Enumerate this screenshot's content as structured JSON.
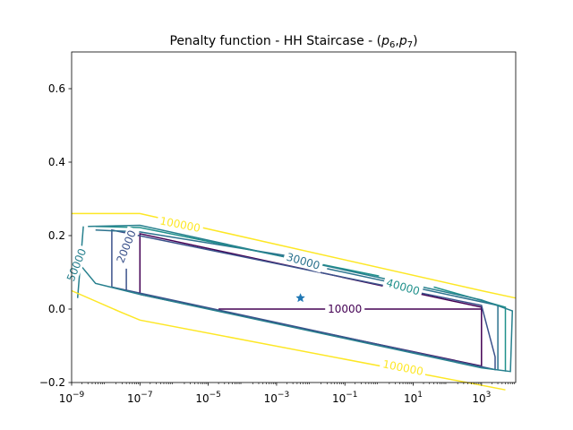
{
  "chart_data": {
    "type": "contour",
    "title_main": "Penalty function - HH Staircase - (",
    "title_p6": "p",
    "title_p6_sub": "6",
    "title_sep": ",",
    "title_p7": "p",
    "title_p7_sub": "7",
    "title_end": ")",
    "xscale": "log",
    "xlim": [
      1e-09,
      10000
    ],
    "ylim": [
      -0.2,
      0.7
    ],
    "x_ticks": [
      {
        "value": 1e-09,
        "base": "10",
        "exp": "−9"
      },
      {
        "value": 1e-07,
        "base": "10",
        "exp": "−7"
      },
      {
        "value": 1e-05,
        "base": "10",
        "exp": "−5"
      },
      {
        "value": 0.001,
        "base": "10",
        "exp": "−3"
      },
      {
        "value": 0.1,
        "base": "10",
        "exp": "−1"
      },
      {
        "value": 10,
        "base": "10",
        "exp": "1"
      },
      {
        "value": 1000,
        "base": "10",
        "exp": "3"
      }
    ],
    "y_ticks": [
      {
        "value": -0.2,
        "label": "−0.2"
      },
      {
        "value": 0.0,
        "label": "0.0"
      },
      {
        "value": 0.2,
        "label": "0.2"
      },
      {
        "value": 0.4,
        "label": "0.4"
      },
      {
        "value": 0.6,
        "label": "0.6"
      }
    ],
    "marker": {
      "x": 0.005,
      "y": 0.03,
      "symbol": "star",
      "color": "#1f77b4"
    },
    "levels": [
      {
        "level": 10000,
        "label": "10000",
        "color": "#440154",
        "paths": [
          [
            [
              1e-07,
              0.04
            ],
            [
              1e-07,
              0.205
            ],
            [
              1000,
              0.005
            ],
            [
              1000,
              -0.155
            ],
            [
              1e-07,
              0.04
            ]
          ],
          [
            [
              2e-05,
              0.0
            ],
            [
              1000,
              0.0
            ]
          ]
        ],
        "labels": [
          {
            "x": 0.1,
            "y": 0.0,
            "rot": 0
          }
        ]
      },
      {
        "level": 20000,
        "label": "20000",
        "color": "#3b528b",
        "paths": [
          [
            [
              4e-08,
              0.05
            ],
            [
              4e-08,
              0.11
            ]
          ],
          [
            [
              1.5e-08,
              0.06
            ],
            [
              1.5e-08,
              0.215
            ],
            [
              1000,
              0.01
            ],
            [
              2500,
              -0.13
            ],
            [
              2500,
              -0.165
            ],
            [
              1.5e-08,
              0.06
            ]
          ]
        ],
        "labels": [
          {
            "x": 4e-08,
            "y": 0.17,
            "rot": -68
          }
        ]
      },
      {
        "level": 30000,
        "label": "30000",
        "color": "#2c728e",
        "paths": [
          [
            [
              5e-09,
              0.215
            ],
            [
              1e-07,
              0.21
            ],
            [
              0.002,
              0.145
            ]
          ],
          [
            [
              0.03,
              0.11
            ],
            [
              3000,
              0.01
            ],
            [
              3000,
              -0.165
            ]
          ]
        ],
        "labels": [
          {
            "x": 0.006,
            "y": 0.13,
            "rot": 16
          }
        ]
      },
      {
        "level": 40000,
        "label": "40000",
        "color": "#21918c",
        "paths": [
          [
            [
              5e-09,
              0.225
            ],
            [
              1e-07,
              0.222
            ],
            [
              1,
              0.09
            ]
          ],
          [
            [
              40,
              0.06
            ],
            [
              5000,
              0.005
            ],
            [
              5000,
              -0.17
            ]
          ]
        ],
        "labels": [
          {
            "x": 5,
            "y": 0.06,
            "rot": 16
          }
        ]
      },
      {
        "level": 50000,
        "label": "50000",
        "color": "#27808e",
        "paths": [
          [
            [
              3e-09,
              0.225
            ],
            [
              1e-07,
              0.228
            ],
            [
              1000,
              0.025
            ],
            [
              8000,
              -0.005
            ],
            [
              7000,
              -0.17
            ],
            [
              1000,
              -0.16
            ],
            [
              1e-07,
              0.04
            ],
            [
              5e-09,
              0.07
            ],
            [
              1.8e-09,
              0.12
            ]
          ],
          [
            [
              1.5e-09,
              0.03
            ],
            [
              2.2e-09,
              0.225
            ]
          ]
        ],
        "labels": [
          {
            "x": 1.4e-09,
            "y": 0.12,
            "rot": -68
          }
        ]
      },
      {
        "level": 100000,
        "label": "100000",
        "color": "#fde725",
        "paths": [
          [
            [
              1e-09,
              0.26
            ],
            [
              1e-07,
              0.26
            ],
            [
              1000,
              0.05
            ],
            [
              10000,
              0.03
            ]
          ],
          [
            [
              1e-09,
              0.05
            ],
            [
              3e-08,
              -0.01
            ],
            [
              1e-07,
              -0.03
            ],
            [
              5000,
              -0.22
            ]
          ]
        ],
        "labels": [
          {
            "x": 1.5e-06,
            "y": 0.23,
            "rot": 11
          },
          {
            "x": 5,
            "y": -0.16,
            "rot": 11
          }
        ]
      }
    ]
  }
}
